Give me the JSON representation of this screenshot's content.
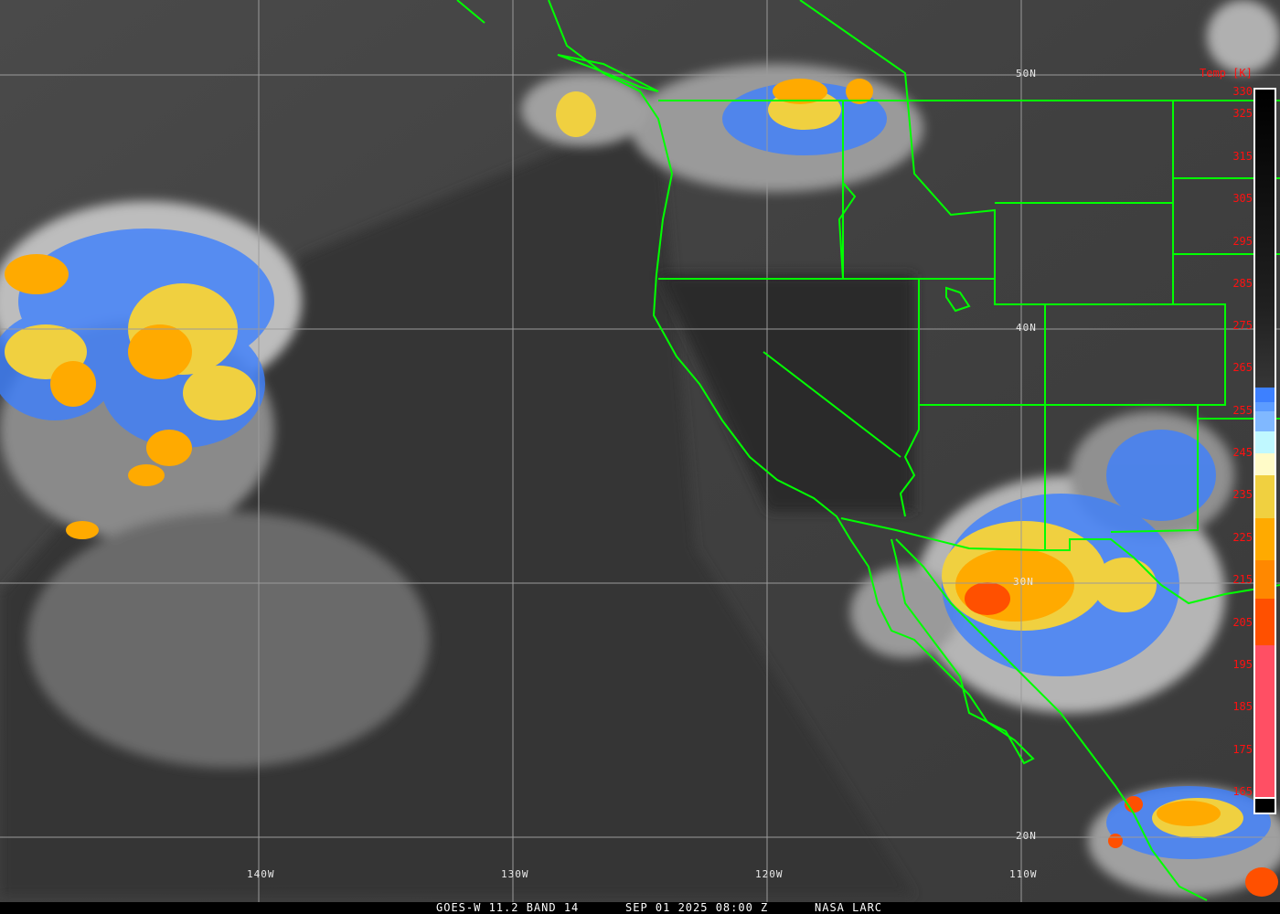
{
  "caption": {
    "product": "GOES-W 11.2 BAND 14",
    "datetime": "SEP 01 2025 08:00 Z",
    "credit": "NASA LARC"
  },
  "colorbar": {
    "title": "Temp [K]",
    "ticks": [
      "330",
      "325",
      "315",
      "305",
      "295",
      "285",
      "275",
      "265",
      "255",
      "245",
      "235",
      "225",
      "215",
      "205",
      "195",
      "185",
      "175",
      "165"
    ],
    "colors": {
      "cold_pink": "#ff4f64",
      "red_orange": "#ff5000",
      "orange": "#ff8800",
      "amber": "#ffaa00",
      "yellow": "#f0d040",
      "cream": "#fffbc8",
      "pale_cyan": "#c0f8ff",
      "light_blue": "#80b8ff",
      "blue": "#3d80ff",
      "boundary_lines": "#00ff00"
    }
  },
  "graticule": {
    "latitudes": [
      "50N",
      "40N",
      "30N",
      "20N"
    ],
    "longitudes": [
      "140W",
      "130W",
      "120W",
      "110W"
    ]
  }
}
